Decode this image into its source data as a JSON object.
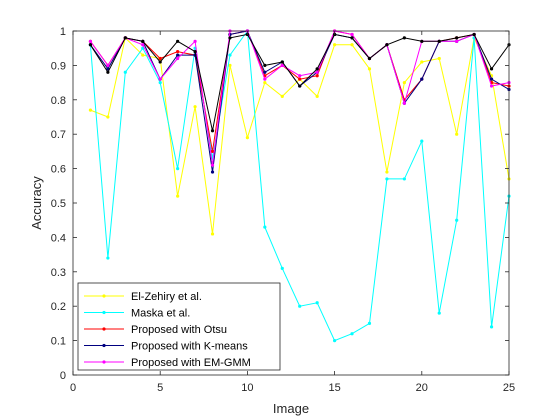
{
  "chart_data": {
    "type": "line",
    "xlabel": "Image",
    "ylabel": "Accuracy",
    "xlim": [
      0,
      25
    ],
    "ylim": [
      0,
      1
    ],
    "xticks": [
      0,
      5,
      10,
      15,
      20,
      25
    ],
    "yticks": [
      0,
      0.1,
      0.2,
      0.3,
      0.4,
      0.5,
      0.6,
      0.7,
      0.8,
      0.9,
      1
    ],
    "grid": false,
    "legend_position": "bottom-left",
    "x": [
      1,
      2,
      3,
      4,
      5,
      6,
      7,
      8,
      9,
      10,
      11,
      12,
      13,
      14,
      15,
      16,
      17,
      18,
      19,
      20,
      21,
      22,
      23,
      24,
      25
    ],
    "series": [
      {
        "name": "El-Zehiry et al.",
        "color": "#ffff00",
        "values": [
          0.77,
          0.75,
          0.98,
          0.93,
          0.92,
          0.52,
          0.78,
          0.41,
          0.9,
          0.69,
          0.85,
          0.81,
          0.86,
          0.81,
          0.96,
          0.96,
          0.89,
          0.59,
          0.85,
          0.91,
          0.92,
          0.7,
          0.98,
          0.87,
          0.57
        ]
      },
      {
        "name": "Maska et al.",
        "color": "#00ffff",
        "values": [
          0.96,
          0.34,
          0.88,
          0.95,
          0.85,
          0.6,
          0.95,
          0.63,
          0.93,
          1.0,
          0.43,
          0.31,
          0.2,
          0.21,
          0.1,
          0.12,
          0.15,
          0.57,
          0.57,
          0.68,
          0.18,
          0.45,
          0.98,
          0.14,
          0.52
        ]
      },
      {
        "name": "Proposed with Otsu",
        "color": "#ff0000",
        "values": [
          0.97,
          0.9,
          0.98,
          0.97,
          0.92,
          0.94,
          0.93,
          0.65,
          0.99,
          1.0,
          0.87,
          0.9,
          0.86,
          0.87,
          1.0,
          0.99,
          0.92,
          0.96,
          0.8,
          0.86,
          0.97,
          0.98,
          0.99,
          0.85,
          0.84
        ]
      },
      {
        "name": "Proposed with K-means",
        "color": "#000080",
        "values": [
          0.96,
          0.89,
          0.98,
          0.97,
          0.86,
          0.93,
          0.93,
          0.59,
          0.99,
          1.0,
          0.88,
          0.91,
          0.84,
          0.88,
          0.99,
          0.98,
          0.92,
          0.96,
          0.79,
          0.86,
          0.97,
          0.97,
          0.99,
          0.86,
          0.83
        ]
      },
      {
        "name": "Proposed with EM-GMM",
        "color": "#ff00ff",
        "values": [
          0.97,
          0.9,
          0.98,
          0.96,
          0.86,
          0.92,
          0.97,
          0.61,
          1.0,
          1.0,
          0.86,
          0.9,
          0.87,
          0.88,
          1.0,
          0.99,
          0.92,
          0.96,
          0.79,
          0.97,
          0.97,
          0.97,
          0.99,
          0.84,
          0.85
        ]
      },
      {
        "name": "",
        "color": "#000000",
        "values": [
          0.96,
          0.88,
          0.98,
          0.97,
          0.91,
          0.97,
          0.94,
          0.71,
          0.98,
          0.99,
          0.9,
          0.91,
          0.84,
          0.89,
          0.99,
          0.98,
          0.92,
          0.96,
          0.98,
          0.97,
          0.97,
          0.98,
          0.99,
          0.89,
          0.96
        ]
      }
    ]
  }
}
